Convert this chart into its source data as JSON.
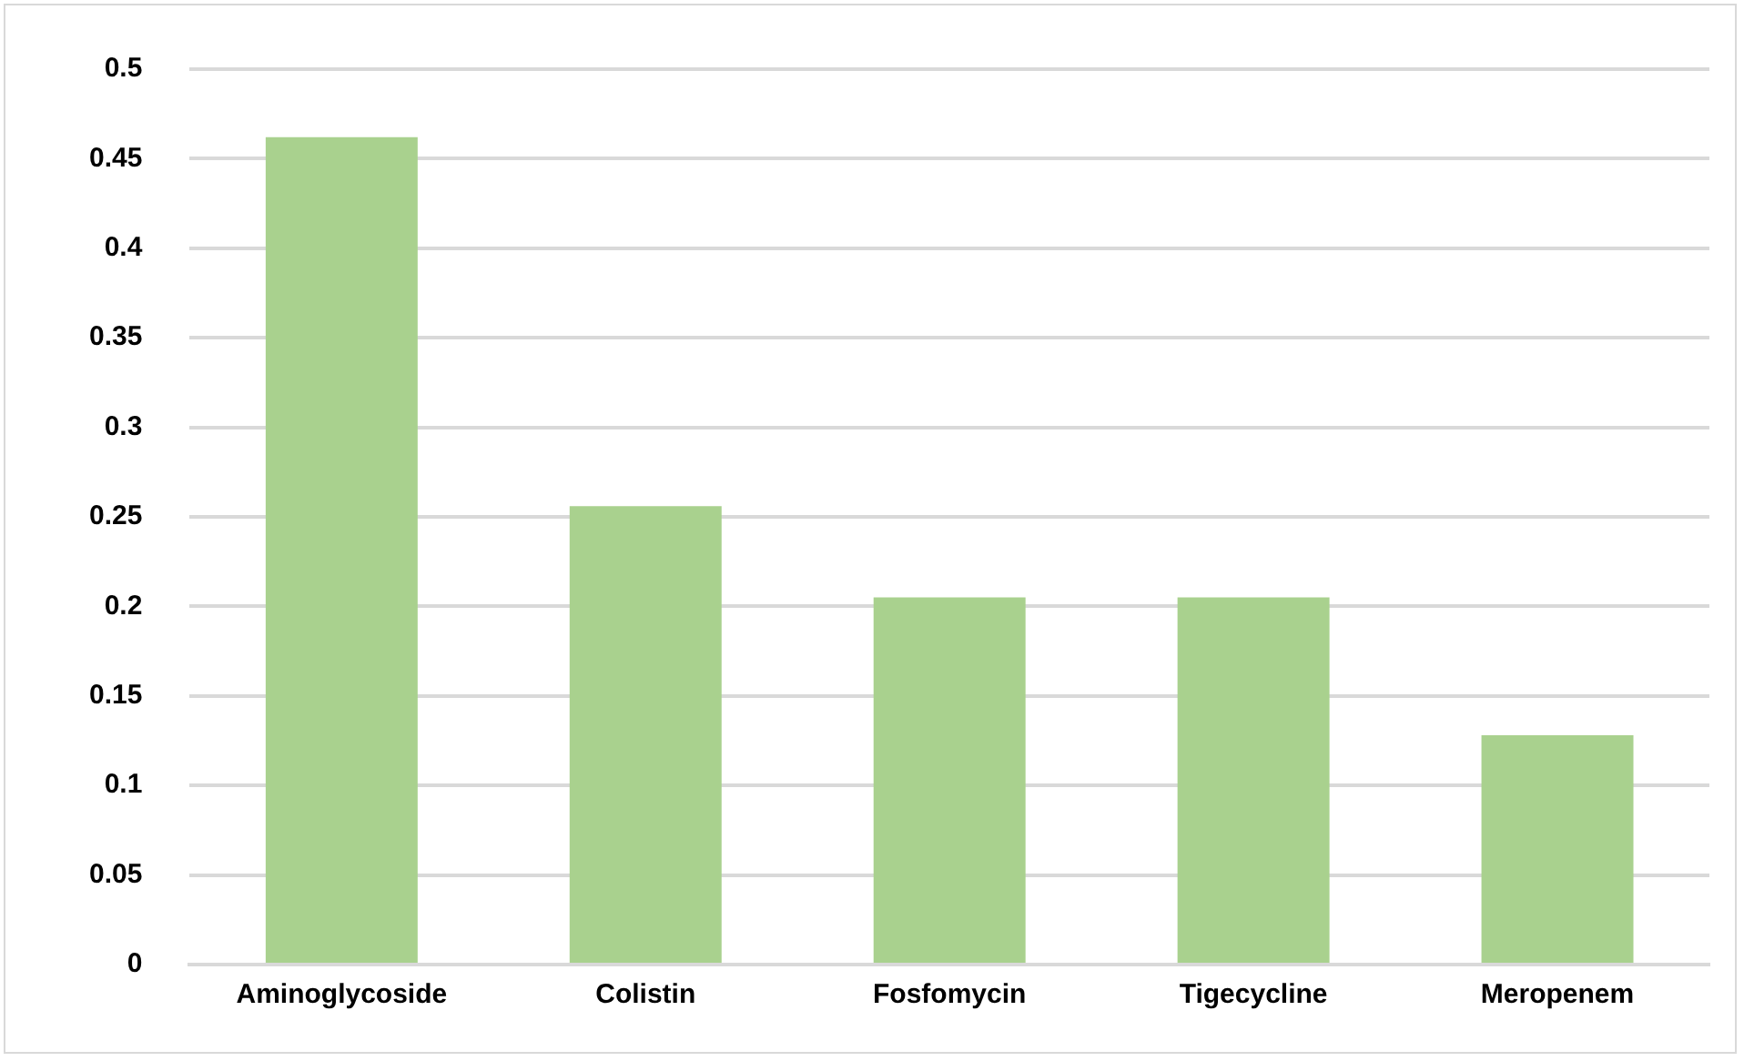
{
  "chart_data": {
    "type": "bar",
    "categories": [
      "Aminoglycoside",
      "Colistin",
      "Fosfomycin",
      "Tigecycline",
      "Meropenem"
    ],
    "values": [
      0.462,
      0.256,
      0.205,
      0.205,
      0.128
    ],
    "color": "#a9d18e",
    "ylim": [
      0,
      0.5
    ],
    "yticks": [
      0,
      0.05,
      0.1,
      0.15,
      0.2,
      0.25,
      0.3,
      0.35,
      0.4,
      0.45,
      0.5
    ],
    "grid": "y",
    "legend": false
  }
}
